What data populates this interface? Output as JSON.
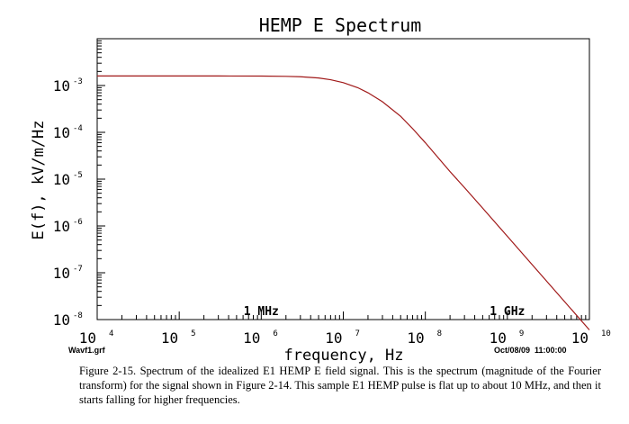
{
  "chart_data": {
    "type": "line",
    "title": "HEMP  E  Spectrum",
    "xlabel": "frequency,  Hz",
    "ylabel": "E(f),  kV/m/Hz",
    "x_scale": "log",
    "y_scale": "log",
    "xlim": [
      10000,
      10000000000
    ],
    "ylim": [
      1e-08,
      0.01
    ],
    "x_ticks": [
      {
        "value": 10000,
        "base": "10",
        "exp": "4"
      },
      {
        "value": 100000,
        "base": "10",
        "exp": "5"
      },
      {
        "value": 1000000,
        "base": "10",
        "exp": "6"
      },
      {
        "value": 10000000,
        "base": "10",
        "exp": "7"
      },
      {
        "value": 100000000,
        "base": "10",
        "exp": "8"
      },
      {
        "value": 1000000000,
        "base": "10",
        "exp": "9"
      },
      {
        "value": 10000000000,
        "base": "10",
        "exp": "10"
      }
    ],
    "y_ticks": [
      {
        "value": 0.001,
        "base": "10",
        "exp": "-3"
      },
      {
        "value": 0.0001,
        "base": "10",
        "exp": "-4"
      },
      {
        "value": 1e-05,
        "base": "10",
        "exp": "-5"
      },
      {
        "value": 1e-06,
        "base": "10",
        "exp": "-6"
      },
      {
        "value": 1e-07,
        "base": "10",
        "exp": "-7"
      },
      {
        "value": 1e-08,
        "base": "10",
        "exp": "-8"
      }
    ],
    "annotations": [
      {
        "text": "1  MHz",
        "x": 1000000
      },
      {
        "text": "1  GHz",
        "x": 1000000000
      }
    ],
    "series": [
      {
        "color": "#a01818",
        "x": [
          10000,
          30000,
          100000,
          300000,
          1000000,
          2000000,
          3000000,
          5000000,
          7000000,
          10000000,
          15000000,
          20000000,
          30000000,
          50000000,
          70000000,
          100000000,
          200000000,
          300000000,
          500000000,
          1000000000,
          2000000000,
          5000000000,
          10000000000
        ],
        "y": [
          0.0016,
          0.0016,
          0.0016,
          0.0016,
          0.00159,
          0.00157,
          0.00154,
          0.00145,
          0.00133,
          0.00115,
          0.0009,
          0.0007,
          0.00045,
          0.00022,
          0.00012,
          6e-05,
          1.45e-05,
          6.6e-06,
          2.4e-06,
          6e-07,
          1.5e-07,
          2.4e-08,
          6e-09
        ]
      }
    ]
  },
  "footer": {
    "left_tag": "Wavf1.grf",
    "right_tag": "Oct/08/09  11:00:00"
  },
  "caption": "Figure 2-15. Spectrum of the idealized E1 HEMP E field signal.  This is the spectrum (magnitude of the Fourier transform) for the signal shown in Figure 2-14.  This sample E1 HEMP pulse is flat up to about 10 MHz, and then it starts falling for higher frequencies."
}
